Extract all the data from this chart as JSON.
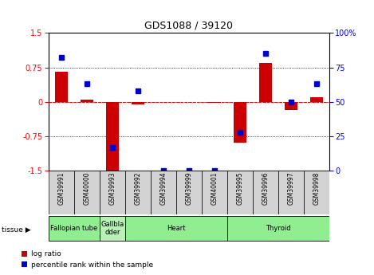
{
  "title": "GDS1088 / 39120",
  "samples": [
    "GSM39991",
    "GSM40000",
    "GSM39993",
    "GSM39992",
    "GSM39994",
    "GSM39999",
    "GSM40001",
    "GSM39995",
    "GSM39996",
    "GSM39997",
    "GSM39998"
  ],
  "log_ratio": [
    0.65,
    0.05,
    -1.55,
    -0.05,
    0.0,
    0.0,
    -0.03,
    -0.9,
    0.85,
    -0.18,
    0.1
  ],
  "percentile_rank": [
    82,
    63,
    17,
    58,
    0,
    0,
    0,
    28,
    85,
    50,
    63
  ],
  "tissue_defs": [
    {
      "name": "Fallopian tube",
      "samples": [
        0,
        1
      ],
      "color": "#90ee90"
    },
    {
      "name": "Gallbla\ndder",
      "samples": [
        2
      ],
      "color": "#b8f0b8"
    },
    {
      "name": "Heart",
      "samples": [
        3,
        4,
        5,
        6
      ],
      "color": "#90ee90"
    },
    {
      "name": "Thyroid",
      "samples": [
        7,
        8,
        9,
        10
      ],
      "color": "#90ee90"
    }
  ],
  "ylim": [
    -1.5,
    1.5
  ],
  "yticks_left": [
    -1.5,
    -0.75,
    0,
    0.75,
    1.5
  ],
  "yticks_right": [
    0,
    25,
    50,
    75,
    100
  ],
  "bar_color": "#cc0000",
  "dot_color": "#0000cc",
  "bg_color": "#ffffff",
  "label_log_ratio": "log ratio",
  "label_percentile": "percentile rank within the sample"
}
